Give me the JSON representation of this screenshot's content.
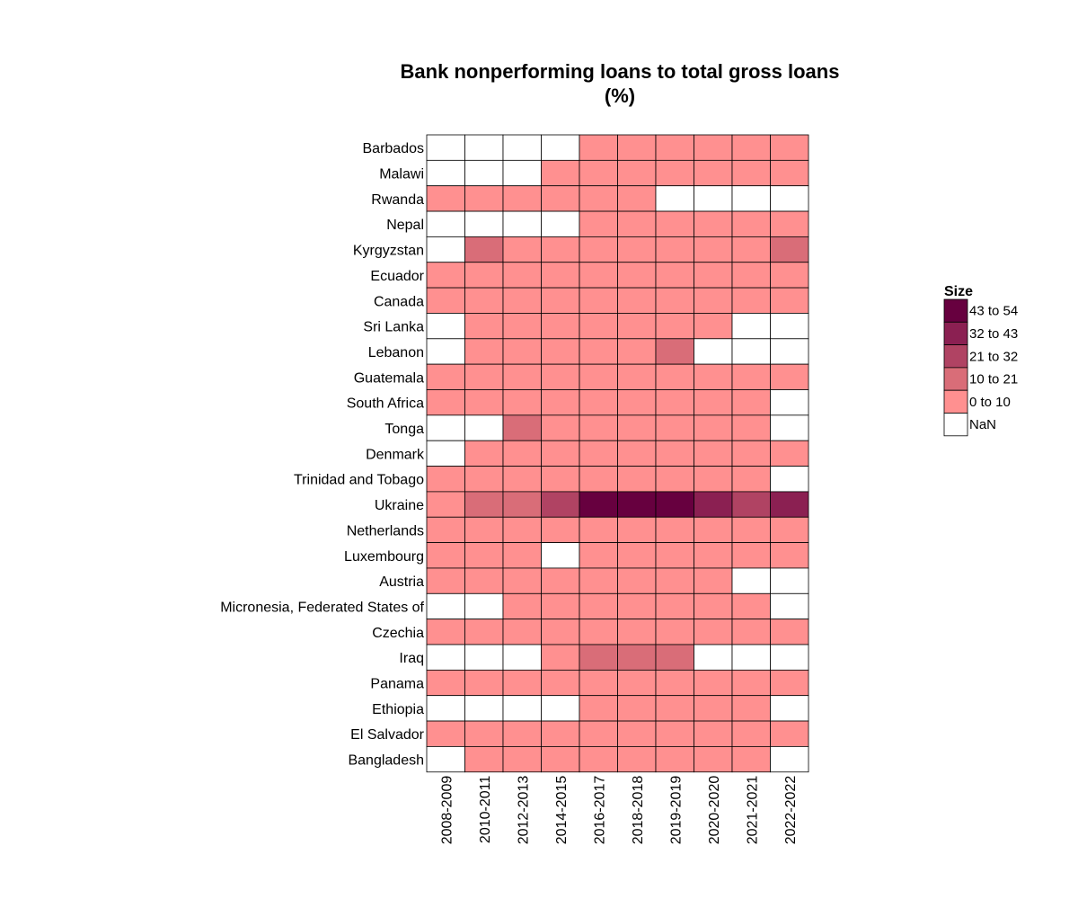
{
  "chart_data": {
    "type": "heatmap",
    "title": "Bank nonperforming loans to total gross loans",
    "subtitle": "(%)",
    "xlabel": "",
    "ylabel": "",
    "x_categories": [
      "2008-2009",
      "2010-2011",
      "2012-2013",
      "2014-2015",
      "2016-2017",
      "2018-2018",
      "2019-2019",
      "2020-2020",
      "2021-2021",
      "2022-2022"
    ],
    "y_categories": [
      "Barbados",
      "Malawi",
      "Rwanda",
      "Nepal",
      "Kyrgyzstan",
      "Ecuador",
      "Canada",
      "Sri Lanka",
      "Lebanon",
      "Guatemala",
      "South Africa",
      "Tonga",
      "Denmark",
      "Trinidad and Tobago",
      "Ukraine",
      "Netherlands",
      "Luxembourg",
      "Austria",
      "Micronesia, Federated States of",
      "Czechia",
      "Iraq",
      "Panama",
      "Ethiopia",
      "El Salvador",
      "Bangladesh"
    ],
    "values": [
      [
        null,
        null,
        null,
        null,
        5,
        5,
        5,
        5,
        5,
        5
      ],
      [
        null,
        null,
        null,
        5,
        5,
        5,
        5,
        5,
        5,
        5
      ],
      [
        5,
        5,
        5,
        5,
        5,
        5,
        null,
        null,
        null,
        null
      ],
      [
        null,
        null,
        null,
        null,
        5,
        5,
        5,
        5,
        5,
        5
      ],
      [
        null,
        15,
        5,
        5,
        5,
        5,
        5,
        5,
        5,
        15
      ],
      [
        5,
        5,
        5,
        5,
        5,
        5,
        5,
        5,
        5,
        5
      ],
      [
        5,
        5,
        5,
        5,
        5,
        5,
        5,
        5,
        5,
        5
      ],
      [
        null,
        5,
        5,
        5,
        5,
        5,
        5,
        5,
        null,
        null
      ],
      [
        null,
        5,
        5,
        5,
        5,
        5,
        15,
        null,
        null,
        null
      ],
      [
        5,
        5,
        5,
        5,
        5,
        5,
        5,
        5,
        5,
        5
      ],
      [
        5,
        5,
        5,
        5,
        5,
        5,
        5,
        5,
        5,
        null
      ],
      [
        null,
        null,
        15,
        5,
        5,
        5,
        5,
        5,
        5,
        null
      ],
      [
        null,
        5,
        5,
        5,
        5,
        5,
        5,
        5,
        5,
        5
      ],
      [
        5,
        5,
        5,
        5,
        5,
        5,
        5,
        5,
        5,
        null
      ],
      [
        5,
        15,
        15,
        25,
        50,
        50,
        50,
        37,
        27,
        37
      ],
      [
        5,
        5,
        5,
        5,
        5,
        5,
        5,
        5,
        5,
        5
      ],
      [
        5,
        5,
        5,
        null,
        5,
        5,
        5,
        5,
        5,
        5
      ],
      [
        5,
        5,
        5,
        5,
        5,
        5,
        5,
        5,
        null,
        null
      ],
      [
        null,
        null,
        5,
        5,
        5,
        5,
        5,
        5,
        5,
        null
      ],
      [
        5,
        5,
        5,
        5,
        5,
        5,
        5,
        5,
        5,
        5
      ],
      [
        null,
        null,
        null,
        5,
        15,
        15,
        15,
        null,
        null,
        null
      ],
      [
        5,
        5,
        5,
        5,
        5,
        5,
        5,
        5,
        5,
        5
      ],
      [
        null,
        null,
        null,
        null,
        5,
        5,
        5,
        5,
        5,
        null
      ],
      [
        5,
        5,
        5,
        5,
        5,
        5,
        5,
        5,
        5,
        5
      ],
      [
        null,
        5,
        5,
        5,
        5,
        5,
        5,
        5,
        5,
        null
      ]
    ],
    "legend": {
      "title": "Size",
      "placement": "right",
      "bins": [
        {
          "label": "43 to 54",
          "min": 43,
          "max": 54,
          "color": "#67003f"
        },
        {
          "label": "32 to 43",
          "min": 32,
          "max": 43,
          "color": "#8b2052"
        },
        {
          "label": "21 to 32",
          "min": 21,
          "max": 32,
          "color": "#b04363"
        },
        {
          "label": "10 to 21",
          "min": 10,
          "max": 21,
          "color": "#d96d78"
        },
        {
          "label": "0 to 10",
          "min": 0,
          "max": 10,
          "color": "#ff9090"
        },
        {
          "label": "NaN",
          "min": null,
          "max": null,
          "color": "#ffffff"
        }
      ]
    },
    "grid": true
  }
}
